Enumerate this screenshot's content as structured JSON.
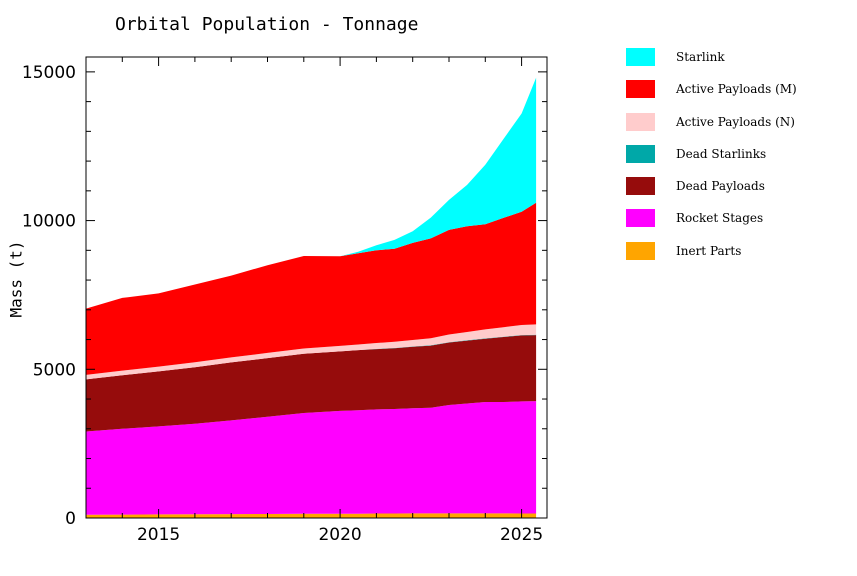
{
  "chart_data": {
    "type": "area",
    "title": "Orbital Population - Tonnage",
    "xlabel": "",
    "ylabel": "Mass (t)",
    "xlim": [
      2013.0,
      2025.7
    ],
    "ylim": [
      0,
      15500
    ],
    "xticks": [
      2015,
      2020,
      2025
    ],
    "yticks": [
      0,
      5000,
      10000,
      15000
    ],
    "stacked": true,
    "legend_position": "right, outside plot",
    "x": [
      2013.0,
      2014.0,
      2015.0,
      2016.0,
      2017.0,
      2018.0,
      2019.0,
      2020.0,
      2020.5,
      2021.0,
      2021.5,
      2022.0,
      2022.5,
      2023.0,
      2023.5,
      2024.0,
      2024.5,
      2025.0,
      2025.4
    ],
    "series": [
      {
        "name": "Inert Parts",
        "color": "#ffa500",
        "values": [
          110,
          115,
          120,
          125,
          130,
          135,
          140,
          145,
          145,
          150,
          150,
          155,
          155,
          155,
          155,
          155,
          155,
          150,
          150
        ]
      },
      {
        "name": "Rocket Stages",
        "color": "#ff00ff",
        "values": [
          2800,
          2885,
          2960,
          3045,
          3150,
          3270,
          3390,
          3455,
          3480,
          3500,
          3515,
          3535,
          3555,
          3645,
          3695,
          3745,
          3745,
          3770,
          3780
        ]
      },
      {
        "name": "Dead Payloads",
        "color": "#960c0c",
        "values": [
          1750,
          1800,
          1850,
          1900,
          1950,
          1970,
          1990,
          2000,
          2020,
          2030,
          2045,
          2065,
          2085,
          2100,
          2115,
          2130,
          2185,
          2220,
          2220
        ]
      },
      {
        "name": "Dead Starlinks",
        "color": "#00a8a8",
        "values": [
          0,
          0,
          0,
          0,
          0,
          0,
          0,
          0,
          0,
          5,
          5,
          10,
          10,
          10,
          10,
          10,
          10,
          10,
          10
        ]
      },
      {
        "name": "Active Payloads (N)",
        "color": "#ffcccc",
        "values": [
          150,
          155,
          160,
          165,
          170,
          175,
          180,
          185,
          190,
          200,
          210,
          220,
          240,
          260,
          280,
          300,
          320,
          340,
          350
        ]
      },
      {
        "name": "Active Payloads (M)",
        "color": "#ff0000",
        "values": [
          2230,
          2445,
          2460,
          2615,
          2750,
          2950,
          3110,
          3015,
          3065,
          3115,
          3125,
          3265,
          3355,
          3515,
          3555,
          3535,
          3675,
          3810,
          4090
        ]
      },
      {
        "name": "Starlink",
        "color": "#00ffff",
        "values": [
          0,
          0,
          0,
          0,
          0,
          0,
          0,
          0,
          50,
          170,
          300,
          390,
          700,
          1010,
          1390,
          2000,
          2650,
          3300,
          4200
        ]
      }
    ]
  },
  "legend_order": [
    "Starlink",
    "Active Payloads (M)",
    "Active Payloads (N)",
    "Dead Starlinks",
    "Dead Payloads",
    "Rocket Stages",
    "Inert Parts"
  ]
}
